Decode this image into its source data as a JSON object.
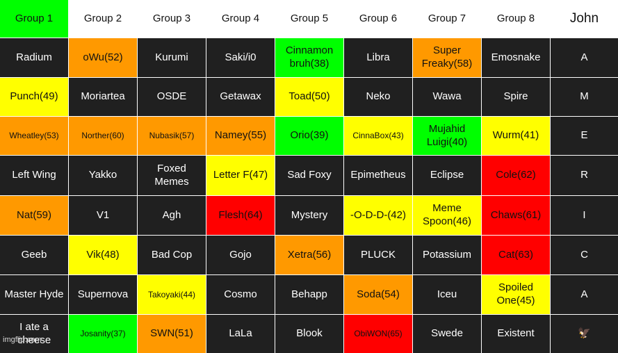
{
  "colors": {
    "green": "#00ff00",
    "orange": "#ff9900",
    "yellow": "#ffff00",
    "red": "#ff0000",
    "dark": "#202020",
    "white": "#ffffff"
  },
  "headers": [
    {
      "text": "Group 1",
      "bg": "#00ff00"
    },
    {
      "text": "Group 2",
      "bg": "#ffffff"
    },
    {
      "text": "Group 3",
      "bg": "#ffffff"
    },
    {
      "text": "Group 4",
      "bg": "#ffffff"
    },
    {
      "text": "Group 5",
      "bg": "#ffffff"
    },
    {
      "text": "Group 6",
      "bg": "#ffffff"
    },
    {
      "text": "Group 7",
      "bg": "#ffffff"
    },
    {
      "text": "Group 8",
      "bg": "#ffffff"
    },
    {
      "text": "John",
      "bg": "#ffffff"
    }
  ],
  "rows": [
    [
      {
        "text": "Radium",
        "bg": "#202020",
        "fg": "#ffffff"
      },
      {
        "text": "oWu(52)",
        "bg": "#ff9900",
        "fg": "#111111"
      },
      {
        "text": "Kurumi",
        "bg": "#202020",
        "fg": "#ffffff"
      },
      {
        "text": "Saki/i0",
        "bg": "#202020",
        "fg": "#ffffff"
      },
      {
        "text": "Cinnamon bruh(38)",
        "bg": "#00ff00",
        "fg": "#111111"
      },
      {
        "text": "Libra",
        "bg": "#202020",
        "fg": "#ffffff"
      },
      {
        "text": "Super Freaky(58)",
        "bg": "#ff9900",
        "fg": "#111111"
      },
      {
        "text": "Emosnake",
        "bg": "#202020",
        "fg": "#ffffff"
      },
      {
        "text": "A",
        "bg": "#202020",
        "fg": "#ffffff"
      }
    ],
    [
      {
        "text": "Punch(49)",
        "bg": "#ffff00",
        "fg": "#111111"
      },
      {
        "text": "Moriartea",
        "bg": "#202020",
        "fg": "#ffffff"
      },
      {
        "text": "OSDE",
        "bg": "#202020",
        "fg": "#ffffff"
      },
      {
        "text": "Getawax",
        "bg": "#202020",
        "fg": "#ffffff"
      },
      {
        "text": "Toad(50)",
        "bg": "#ffff00",
        "fg": "#111111"
      },
      {
        "text": "Neko",
        "bg": "#202020",
        "fg": "#ffffff"
      },
      {
        "text": "Wawa",
        "bg": "#202020",
        "fg": "#ffffff"
      },
      {
        "text": "Spire",
        "bg": "#202020",
        "fg": "#ffffff"
      },
      {
        "text": "M",
        "bg": "#202020",
        "fg": "#ffffff"
      }
    ],
    [
      {
        "text": "Wheatley(53)",
        "bg": "#ff9900",
        "fg": "#111111",
        "size": "small"
      },
      {
        "text": "Norther(60)",
        "bg": "#ff9900",
        "fg": "#111111",
        "size": "small"
      },
      {
        "text": "Nubasik(57)",
        "bg": "#ff9900",
        "fg": "#111111",
        "size": "small"
      },
      {
        "text": "Namey(55)",
        "bg": "#ff9900",
        "fg": "#111111"
      },
      {
        "text": "Orio(39)",
        "bg": "#00ff00",
        "fg": "#111111"
      },
      {
        "text": "CinnaBox(43)",
        "bg": "#ffff00",
        "fg": "#111111",
        "size": "small"
      },
      {
        "text": "Mujahid Luigi(40)",
        "bg": "#00ff00",
        "fg": "#111111"
      },
      {
        "text": "Wurm(41)",
        "bg": "#ffff00",
        "fg": "#111111"
      },
      {
        "text": "E",
        "bg": "#202020",
        "fg": "#ffffff"
      }
    ],
    [
      {
        "text": "Left Wing",
        "bg": "#202020",
        "fg": "#ffffff"
      },
      {
        "text": "Yakko",
        "bg": "#202020",
        "fg": "#ffffff"
      },
      {
        "text": "Foxed Memes",
        "bg": "#202020",
        "fg": "#ffffff"
      },
      {
        "text": "Letter F(47)",
        "bg": "#ffff00",
        "fg": "#111111"
      },
      {
        "text": "Sad Foxy",
        "bg": "#202020",
        "fg": "#ffffff"
      },
      {
        "text": "Epimetheus",
        "bg": "#202020",
        "fg": "#ffffff"
      },
      {
        "text": "Eclipse",
        "bg": "#202020",
        "fg": "#ffffff"
      },
      {
        "text": "Cole(62)",
        "bg": "#ff0000",
        "fg": "#111111"
      },
      {
        "text": "R",
        "bg": "#202020",
        "fg": "#ffffff"
      }
    ],
    [
      {
        "text": "Nat(59)",
        "bg": "#ff9900",
        "fg": "#111111"
      },
      {
        "text": "V1",
        "bg": "#202020",
        "fg": "#ffffff"
      },
      {
        "text": "Agh",
        "bg": "#202020",
        "fg": "#ffffff"
      },
      {
        "text": "Flesh(64)",
        "bg": "#ff0000",
        "fg": "#111111"
      },
      {
        "text": "Mystery",
        "bg": "#202020",
        "fg": "#ffffff"
      },
      {
        "text": "-O-D-D-(42)",
        "bg": "#ffff00",
        "fg": "#111111"
      },
      {
        "text": "Meme Spoon(46)",
        "bg": "#ffff00",
        "fg": "#111111"
      },
      {
        "text": "Chaws(61)",
        "bg": "#ff0000",
        "fg": "#111111"
      },
      {
        "text": "I",
        "bg": "#202020",
        "fg": "#ffffff"
      }
    ],
    [
      {
        "text": "Geeb",
        "bg": "#202020",
        "fg": "#ffffff"
      },
      {
        "text": "Vik(48)",
        "bg": "#ffff00",
        "fg": "#111111"
      },
      {
        "text": "Bad Cop",
        "bg": "#202020",
        "fg": "#ffffff"
      },
      {
        "text": "Gojo",
        "bg": "#202020",
        "fg": "#ffffff"
      },
      {
        "text": "Xetra(56)",
        "bg": "#ff9900",
        "fg": "#111111"
      },
      {
        "text": "PLUCK",
        "bg": "#202020",
        "fg": "#ffffff"
      },
      {
        "text": "Potassium",
        "bg": "#202020",
        "fg": "#ffffff"
      },
      {
        "text": "Cat(63)",
        "bg": "#ff0000",
        "fg": "#111111"
      },
      {
        "text": "C",
        "bg": "#202020",
        "fg": "#ffffff"
      }
    ],
    [
      {
        "text": "Master Hyde",
        "bg": "#202020",
        "fg": "#ffffff"
      },
      {
        "text": "Supernova",
        "bg": "#202020",
        "fg": "#ffffff"
      },
      {
        "text": "Takoyaki(44)",
        "bg": "#ffff00",
        "fg": "#111111",
        "size": "small"
      },
      {
        "text": "Cosmo",
        "bg": "#202020",
        "fg": "#ffffff"
      },
      {
        "text": "Behapp",
        "bg": "#202020",
        "fg": "#ffffff"
      },
      {
        "text": "Soda(54)",
        "bg": "#ff9900",
        "fg": "#111111"
      },
      {
        "text": "Iceu",
        "bg": "#202020",
        "fg": "#ffffff"
      },
      {
        "text": "Spoiled One(45)",
        "bg": "#ffff00",
        "fg": "#111111"
      },
      {
        "text": "A",
        "bg": "#202020",
        "fg": "#ffffff"
      }
    ],
    [
      {
        "text": "I ate a cheese",
        "bg": "#202020",
        "fg": "#ffffff"
      },
      {
        "text": "Josanity(37)",
        "bg": "#00ff00",
        "fg": "#111111",
        "size": "small"
      },
      {
        "text": "SWN(51)",
        "bg": "#ff9900",
        "fg": "#111111"
      },
      {
        "text": "LaLa",
        "bg": "#202020",
        "fg": "#ffffff"
      },
      {
        "text": "Blook",
        "bg": "#202020",
        "fg": "#ffffff"
      },
      {
        "text": "ObiWON(65)",
        "bg": "#ff0000",
        "fg": "#111111",
        "size": "small"
      },
      {
        "text": "Swede",
        "bg": "#202020",
        "fg": "#ffffff"
      },
      {
        "text": "Existent",
        "bg": "#202020",
        "fg": "#ffffff"
      },
      {
        "text": "🦅",
        "bg": "#202020",
        "fg": "#ffffff",
        "icon": "eagle-icon"
      }
    ]
  ],
  "watermark": "imgflip.com"
}
